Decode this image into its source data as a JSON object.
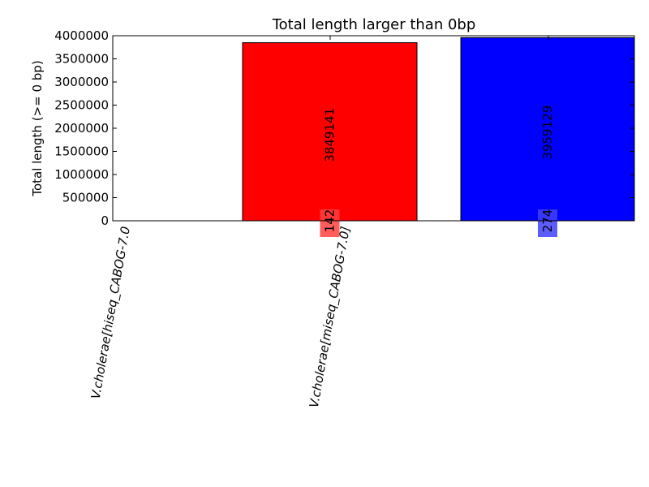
{
  "chart_data": {
    "type": "bar",
    "title": "Total length larger than 0bp",
    "ylabel": "Total length (>= 0 bp)",
    "xlabel": "",
    "ylim": [
      0,
      4000000
    ],
    "yticks": [
      "0",
      "500000",
      "1000000",
      "1500000",
      "2000000",
      "2500000",
      "3000000",
      "3500000",
      "4000000"
    ],
    "ytick_values": [
      0,
      500000,
      1000000,
      1500000,
      2000000,
      2500000,
      3000000,
      3500000,
      4000000
    ],
    "categories": [
      "V.cholerae[hiseq_CABOG-7.0",
      "V.cholerae[miseq_CABOG-7.0]",
      ""
    ],
    "values": [
      0,
      3849141,
      3959129
    ],
    "value_labels": [
      "",
      "3849141",
      "3959129"
    ],
    "count_labels": [
      "",
      "142",
      "274"
    ],
    "colors": [
      "#ffffff",
      "#ff0000",
      "#0000ff"
    ],
    "count_box_colors": [
      "#ffffff",
      "#ff4040",
      "#4040ff"
    ],
    "grid": false
  }
}
